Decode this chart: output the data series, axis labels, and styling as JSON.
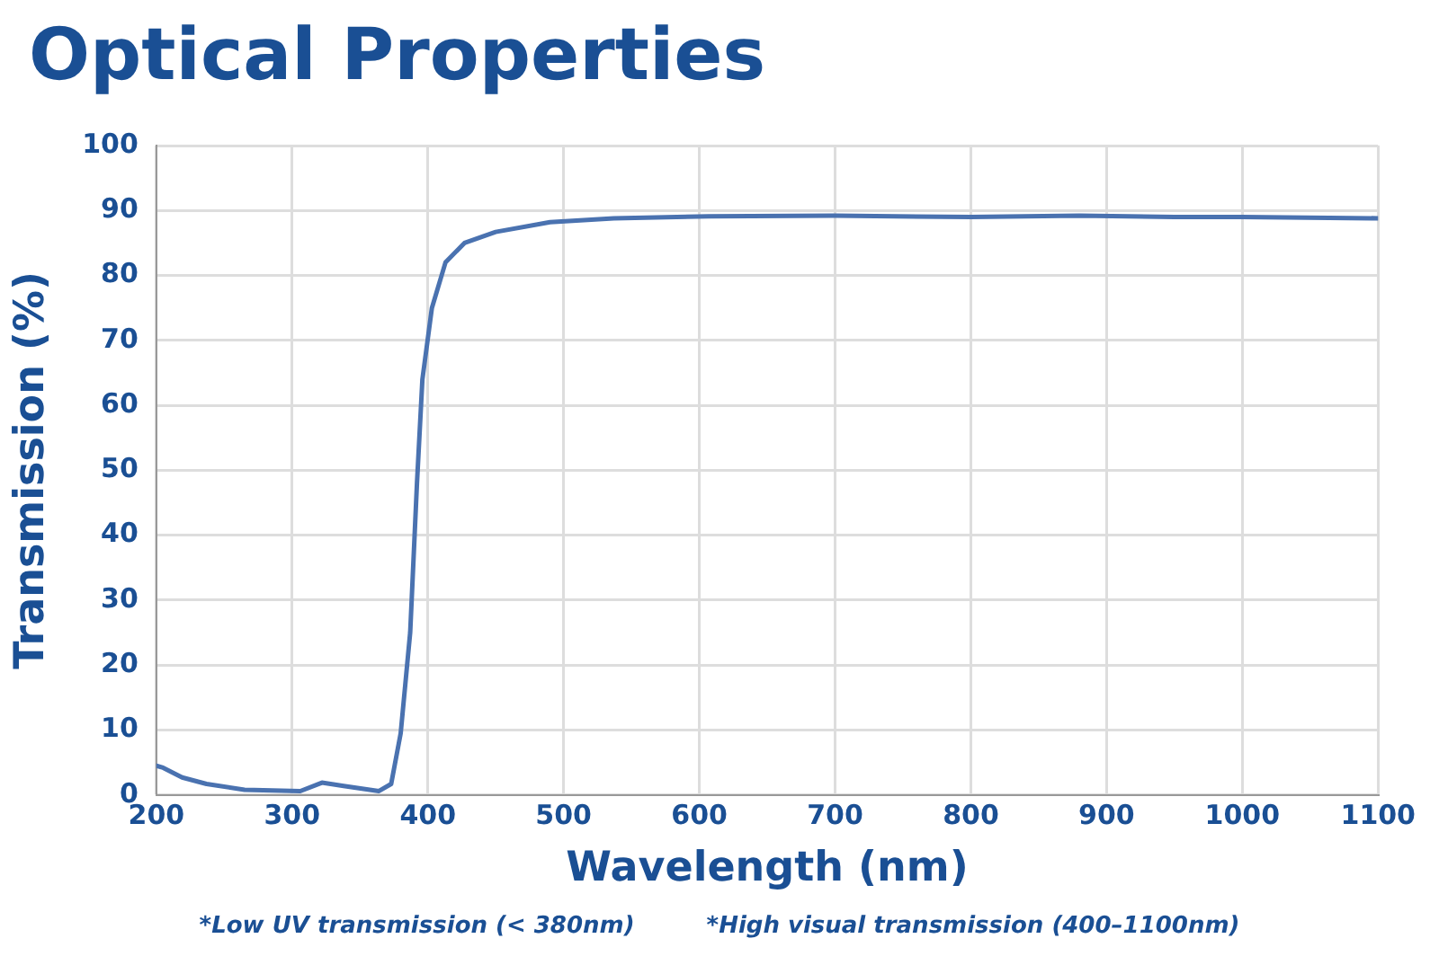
{
  "chart_data": {
    "type": "line",
    "title": "Optical Properties",
    "xlabel": "Wavelength (nm)",
    "ylabel": "Transmission (%)",
    "annotations": [
      "*Low UV transmission (< 380nm)",
      "*High visual transmission (400–1100nm)"
    ],
    "x": [
      200,
      205,
      219,
      237,
      265,
      306,
      322,
      338,
      364,
      373,
      380,
      387,
      392,
      396,
      403,
      413,
      427,
      450,
      490,
      537,
      607,
      700,
      800,
      880,
      950,
      1000,
      1100
    ],
    "series": [
      {
        "color": "#4a72b0",
        "values": [
          4.5,
          4.2,
          2.7,
          1.7,
          0.8,
          0.6,
          1.9,
          1.4,
          0.6,
          1.7,
          9.5,
          25,
          48,
          64,
          75,
          82,
          85,
          86.7,
          88.2,
          88.8,
          89.1,
          89.2,
          89,
          89.2,
          89,
          89,
          88.8
        ]
      }
    ],
    "xlim": [
      200,
      1100
    ],
    "xticks": [
      200,
      300,
      400,
      500,
      600,
      700,
      800,
      900,
      1000,
      1100
    ],
    "ylim": [
      0,
      100
    ],
    "yticks": [
      0,
      10,
      20,
      30,
      40,
      50,
      60,
      70,
      80,
      90,
      100
    ],
    "grid": true,
    "legend": false,
    "marker": "none",
    "line_style": "solid"
  }
}
